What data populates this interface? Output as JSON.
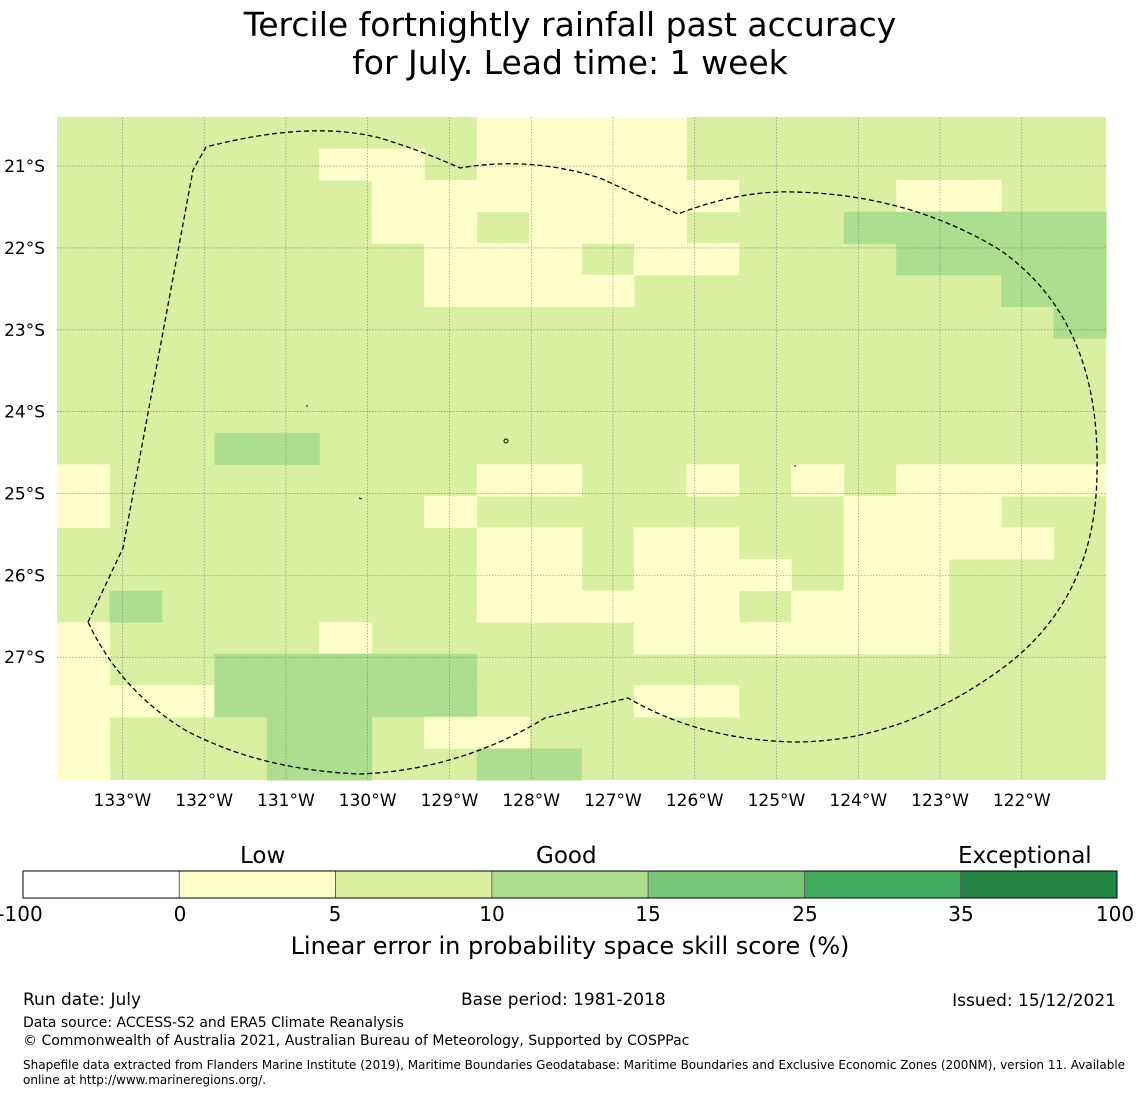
{
  "title": {
    "line1": "Tercile fortnightly rainfall past accuracy",
    "line2": "for July. Lead time: 1 week"
  },
  "map": {
    "lon_labels": [
      "133°W",
      "132°W",
      "131°W",
      "130°W",
      "129°W",
      "128°W",
      "127°W",
      "126°W",
      "125°W",
      "124°W",
      "123°W",
      "122°W"
    ],
    "lat_labels": [
      "21°S",
      "22°S",
      "23°S",
      "24°S",
      "25°S",
      "26°S",
      "27°S"
    ],
    "lon_range": [
      -133.8,
      -120.97
    ],
    "lat_range": [
      -28.5,
      -20.4
    ],
    "cell_size_deg": 0.55,
    "cell_grid": [
      "........LLLL........",
      ".....LL.LLLL........",
      "......LLLLLLL...LL..",
      "......LL.LLL...MMMMM",
      ".......LLL.LL...MMMM",
      ".......LLLL.......MM",
      "...................M",
      "....................",
      "....................",
      "....................",
      "...MM...............",
      "L.......LL..L.L.LLLL",
      "L......L.......LLL..",
      "........LL.LL..LLLL.",
      "........LL.LLL.LL...",
      ".M......LLLLL.LLL...",
      "L....L.....LLLLLL...",
      "L..MMMMM............",
      "LLLMMMMM...LL.......",
      "L...MM.LL...........",
      "L...MM..MM.........."
    ],
    "colors": {
      "background": "#d9f0a3",
      "low": "#ffffcc",
      "medium": "#addd8e",
      "grid_line": "#7f7f7f",
      "boundary": "#000000"
    }
  },
  "colorbar": {
    "categories": [
      "Low",
      "Good",
      "Exceptional"
    ],
    "ticks": [
      "-100",
      "0",
      "5",
      "10",
      "15",
      "25",
      "35",
      "100"
    ],
    "colors": [
      "#ffffff",
      "#ffffcc",
      "#d9f0a3",
      "#addd8e",
      "#78c679",
      "#41ab5d",
      "#238443"
    ],
    "label": "Linear error in probability space skill score (%)"
  },
  "footer": {
    "run_date": "Run date: July",
    "base_period": "Base period: 1981-2018",
    "issued": "Issued: 15/12/2021",
    "data_source": "Data source: ACCESS-S2 and ERA5 Climate Reanalysis",
    "copyright": "© Commonwealth of Australia 2021, Australian Bureau of Meteorology, Supported by COSPPac",
    "shapefile": "Shapefile data extracted from Flanders Marine Institute (2019), Maritime Boundaries Geodatabase: Maritime Boundaries and Exclusive Economic Zones (200NM), version 11. Available online at http://www.marineregions.org/."
  }
}
